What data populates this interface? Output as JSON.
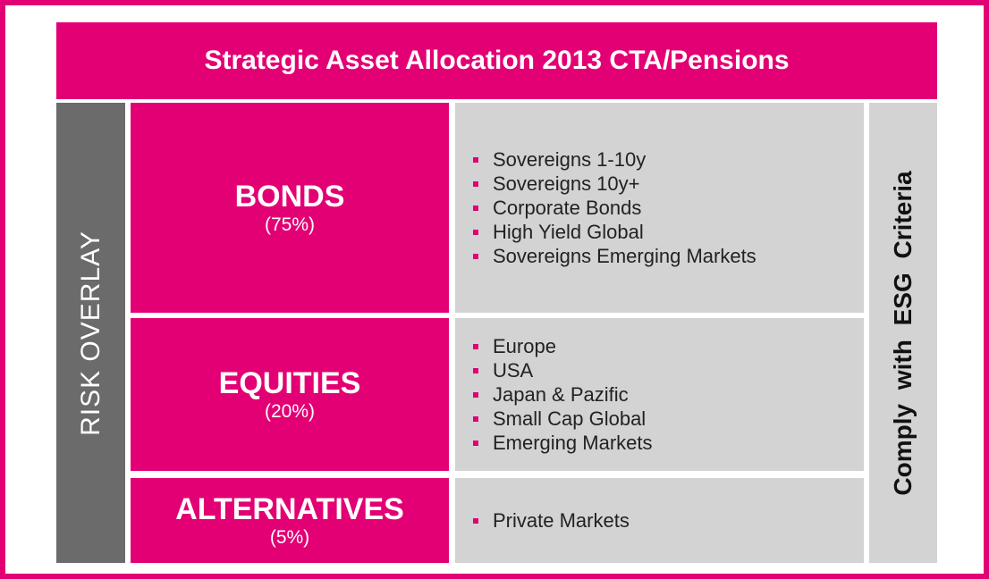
{
  "header": {
    "title": "Strategic Asset Allocation 2013 CTA/Pensions"
  },
  "left_bar": {
    "label": "RISK OVERLAY"
  },
  "right_bar": {
    "label": "Comply with ESG Criteria"
  },
  "segments": [
    {
      "name": "BONDS",
      "share": "(75%)",
      "items": [
        "Sovereigns 1-10y",
        "Sovereigns 10y+",
        "Corporate Bonds",
        "High Yield Global",
        "Sovereigns Emerging Markets"
      ]
    },
    {
      "name": "EQUITIES",
      "share": "(20%)",
      "items": [
        "Europe",
        "USA",
        "Japan & Pazific",
        "Small Cap Global",
        "Emerging Markets"
      ]
    },
    {
      "name": "ALTERNATIVES",
      "share": "(5%)",
      "items": [
        "Private Markets"
      ]
    }
  ]
}
